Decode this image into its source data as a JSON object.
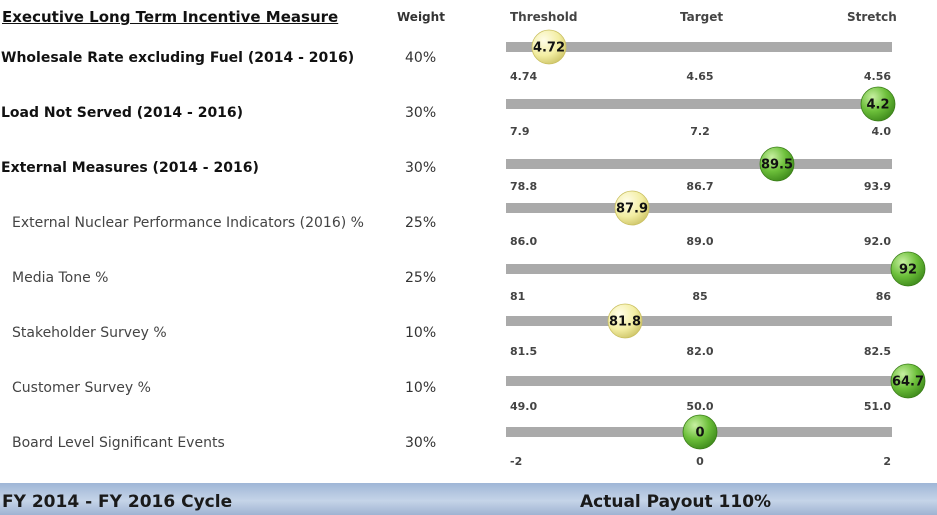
{
  "header": {
    "title": "Executive Long Term Incentive Measure",
    "weight_label": "Weight"
  },
  "scale_labels": {
    "threshold": "Threshold",
    "target": "Target",
    "stretch": "Stretch"
  },
  "footer": {
    "cycle": "FY 2014 - FY 2016 Cycle",
    "payout": "Actual Payout 110%"
  },
  "colors": {
    "bar": "#aaaaaa",
    "marker_yellow": "#f3eea3",
    "marker_green": "#6cbf3a"
  },
  "chart_data": {
    "type": "bullet-gauge",
    "rows": [
      {
        "label": "Wholesale Rate excluding Fuel (2014 - 2016)",
        "level": "main",
        "weight": "40%",
        "threshold": "4.74",
        "target": "4.65",
        "stretch": "4.56",
        "actual": "4.72",
        "marker_color": "yellow"
      },
      {
        "label": "Load Not Served (2014 - 2016)",
        "level": "main",
        "weight": "30%",
        "threshold": "7.9",
        "target": "7.2",
        "stretch": "4.0",
        "actual": "4.2",
        "marker_color": "green"
      },
      {
        "label": "External Measures (2014 - 2016)",
        "level": "main",
        "weight": "30%",
        "threshold": "78.8",
        "target": "86.7",
        "stretch": "93.9",
        "actual": "89.5",
        "marker_color": "green"
      },
      {
        "label": "External Nuclear Performance Indicators (2016) %",
        "level": "sub",
        "weight": "25%",
        "threshold": "86.0",
        "target": "89.0",
        "stretch": "92.0",
        "actual": "87.9",
        "marker_color": "yellow"
      },
      {
        "label": "Media Tone %",
        "level": "sub",
        "weight": "25%",
        "threshold": "81",
        "target": "85",
        "stretch": "86",
        "actual": "92",
        "marker_color": "green"
      },
      {
        "label": "Stakeholder Survey %",
        "level": "sub",
        "weight": "10%",
        "threshold": "81.5",
        "target": "82.0",
        "stretch": "82.5",
        "actual": "81.8",
        "marker_color": "yellow"
      },
      {
        "label": "Customer Survey %",
        "level": "sub",
        "weight": "10%",
        "threshold": "49.0",
        "target": "50.0",
        "stretch": "51.0",
        "actual": "64.7",
        "marker_color": "green"
      },
      {
        "label": "Board Level Significant Events",
        "level": "sub",
        "weight": "30%",
        "threshold": "-2",
        "target": "0",
        "stretch": "2",
        "actual": "0",
        "marker_color": "green"
      }
    ]
  }
}
